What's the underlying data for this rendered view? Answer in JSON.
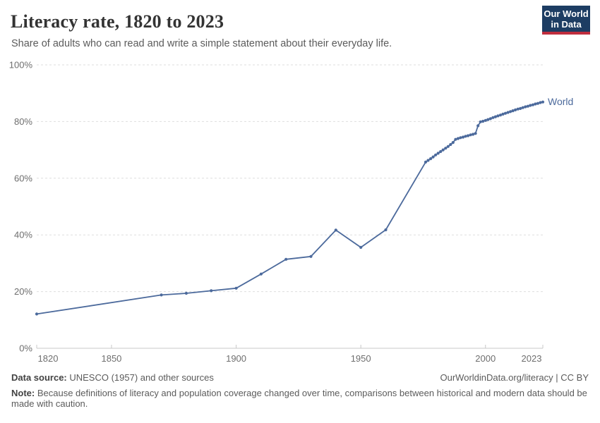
{
  "header": {
    "title": "Literacy rate, 1820 to 2023",
    "subtitle": "Share of adults who can read and write a simple statement about their everyday life.",
    "logo": {
      "line1": "Our World",
      "line2": "in Data",
      "bg_color": "#1d3d63",
      "accent_color": "#bf2e3e"
    }
  },
  "chart_data": {
    "type": "line",
    "title": "Literacy rate, 1820 to 2023",
    "xlabel": "",
    "ylabel": "",
    "xlim": [
      1820,
      2023
    ],
    "ylim": [
      0,
      100
    ],
    "x_ticks": [
      1820,
      1850,
      1900,
      1950,
      2000,
      2023
    ],
    "y_ticks": [
      0,
      20,
      40,
      60,
      80,
      100
    ],
    "y_tick_suffix": "%",
    "grid": "horizontal-dashed",
    "legend_position": "end-of-line",
    "colors": {
      "line": "#4c6a9c",
      "grid": "#dedede",
      "axis": "#c8c8c8",
      "tick_text": "#6e6e6e"
    },
    "series": [
      {
        "name": "World",
        "color": "#4c6a9c",
        "points": [
          [
            1820,
            12.1
          ],
          [
            1870,
            18.8
          ],
          [
            1880,
            19.4
          ],
          [
            1890,
            20.3
          ],
          [
            1900,
            21.2
          ],
          [
            1910,
            26.2
          ],
          [
            1920,
            31.4
          ],
          [
            1930,
            32.4
          ],
          [
            1940,
            41.7
          ],
          [
            1950,
            35.6
          ],
          [
            1960,
            41.8
          ],
          [
            1976,
            65.7
          ],
          [
            1977,
            66.3
          ],
          [
            1978,
            66.9
          ],
          [
            1979,
            67.5
          ],
          [
            1980,
            68.2
          ],
          [
            1981,
            68.8
          ],
          [
            1982,
            69.4
          ],
          [
            1983,
            70.0
          ],
          [
            1984,
            70.6
          ],
          [
            1985,
            71.2
          ],
          [
            1986,
            71.9
          ],
          [
            1987,
            72.6
          ],
          [
            1988,
            73.7
          ],
          [
            1989,
            74.0
          ],
          [
            1990,
            74.3
          ],
          [
            1991,
            74.5
          ],
          [
            1992,
            74.8
          ],
          [
            1993,
            75.0
          ],
          [
            1994,
            75.3
          ],
          [
            1995,
            75.5
          ],
          [
            1996,
            75.8
          ],
          [
            1997,
            78.5
          ],
          [
            1998,
            79.9
          ],
          [
            1999,
            80.1
          ],
          [
            2000,
            80.4
          ],
          [
            2001,
            80.7
          ],
          [
            2002,
            81.0
          ],
          [
            2003,
            81.4
          ],
          [
            2004,
            81.7
          ],
          [
            2005,
            82.0
          ],
          [
            2006,
            82.3
          ],
          [
            2007,
            82.6
          ],
          [
            2008,
            82.9
          ],
          [
            2009,
            83.2
          ],
          [
            2010,
            83.5
          ],
          [
            2011,
            83.8
          ],
          [
            2012,
            84.1
          ],
          [
            2013,
            84.4
          ],
          [
            2014,
            84.6
          ],
          [
            2015,
            84.9
          ],
          [
            2016,
            85.2
          ],
          [
            2017,
            85.4
          ],
          [
            2018,
            85.7
          ],
          [
            2019,
            85.9
          ],
          [
            2020,
            86.2
          ],
          [
            2021,
            86.4
          ],
          [
            2022,
            86.7
          ],
          [
            2023,
            86.9
          ]
        ]
      }
    ]
  },
  "footer": {
    "datasource_label": "Data source:",
    "datasource_text": " UNESCO (1957) and other sources",
    "attribution": "OurWorldinData.org/literacy | CC BY",
    "note_label": "Note:",
    "note_text": " Because definitions of literacy and population coverage changed over time, comparisons between historical and modern data should be made with caution."
  }
}
